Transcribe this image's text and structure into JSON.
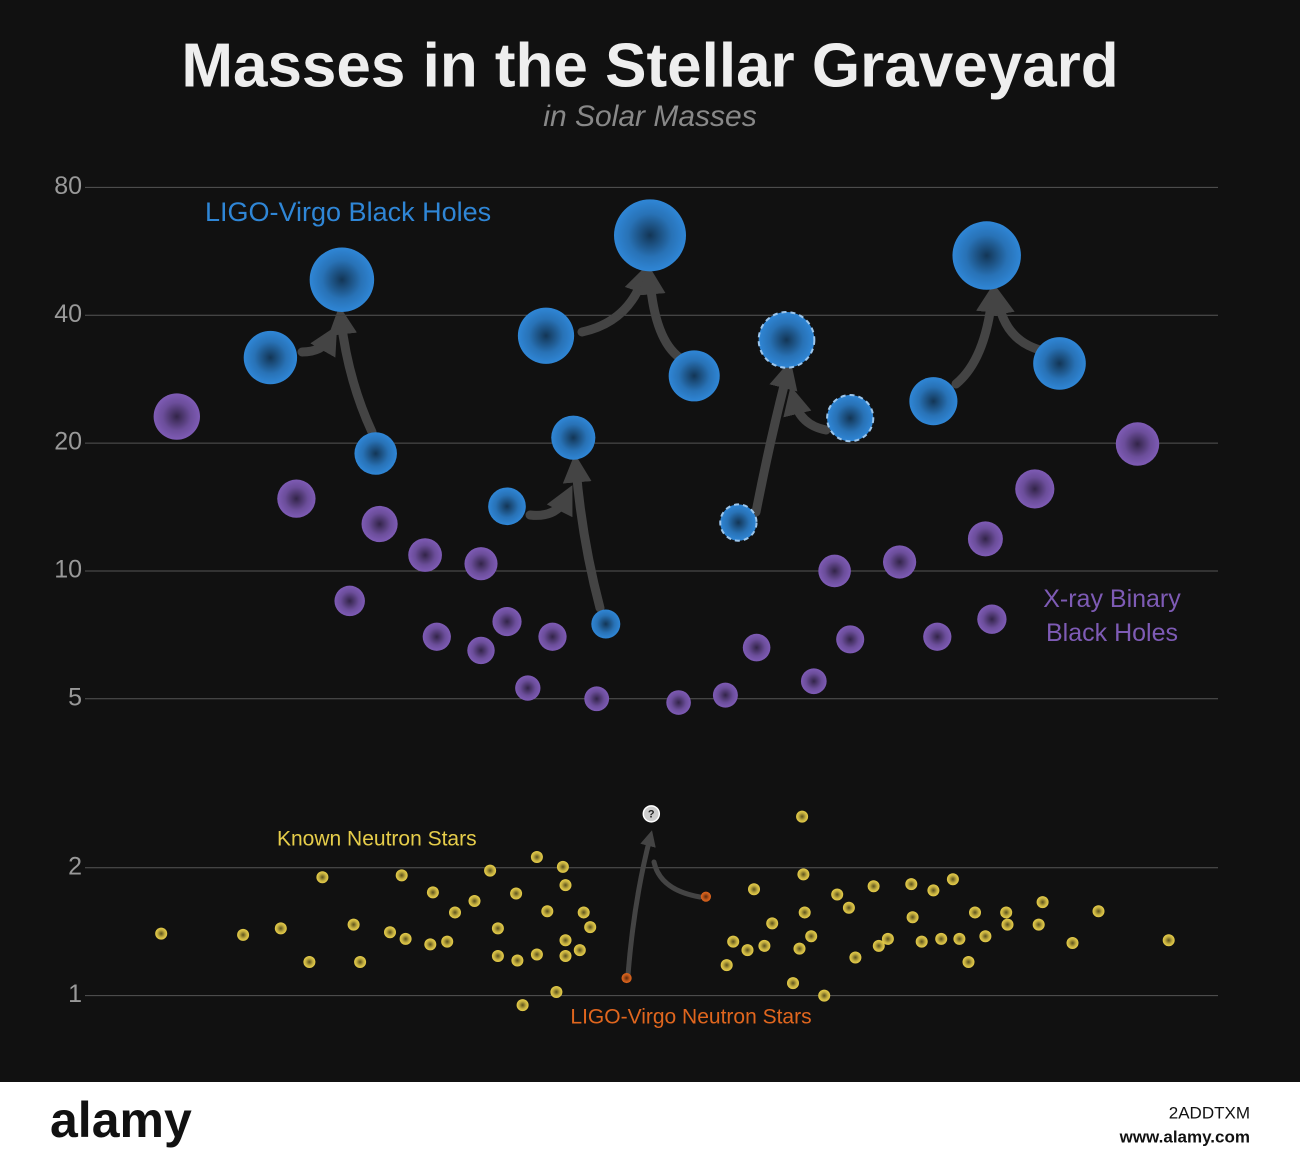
{
  "chart_data": {
    "type": "scatter",
    "title": "Masses in the Stellar Graveyard",
    "subtitle": "in Solar Masses",
    "log_y": true,
    "grid": true,
    "xlim": [
      0,
      100
    ],
    "ylim": [
      0.83,
      98
    ],
    "yticks": [
      1,
      2,
      5,
      10,
      20,
      40,
      80
    ],
    "series": [
      {
        "name": "LIGO-Virgo Black Holes",
        "color": "#2f86d6",
        "x": [
          20.8,
          26.3,
          28.9,
          39.0,
          44.1,
          46.6,
          42.0,
          50.0,
          53.4,
          56.8,
          60.5,
          65.4,
          71.8,
          75.9,
          81.5
        ],
        "values": [
          31.8,
          48.5,
          18.9,
          14.2,
          20.6,
          7.5,
          35.8,
          61.7,
          28.8,
          13.0,
          35,
          22.9,
          25.1,
          55.3,
          30.8
        ],
        "dashed": [
          false,
          false,
          false,
          false,
          false,
          false,
          false,
          false,
          false,
          true,
          true,
          true,
          false,
          false,
          false
        ]
      },
      {
        "name": "X-ray Binary Black Holes",
        "color": "#7e5bb5",
        "x": [
          13.6,
          22.8,
          26.9,
          29.2,
          32.7,
          33.6,
          37.0,
          37.0,
          39.0,
          40.6,
          42.5,
          45.9,
          52.2,
          55.8,
          58.2,
          62.6,
          64.2,
          65.4,
          69.2,
          72.1,
          75.8,
          76.3,
          79.6,
          87.5
        ],
        "values": [
          23.1,
          14.8,
          8.5,
          12.9,
          10.9,
          7.0,
          10.4,
          6.5,
          7.6,
          5.3,
          7.0,
          5.0,
          4.9,
          5.1,
          6.6,
          5.5,
          10.0,
          6.9,
          10.5,
          7.0,
          11.9,
          7.7,
          15.6,
          19.9
        ]
      },
      {
        "name": "Known Neutron Stars",
        "color": "#e6cd4a",
        "x": [
          12.4,
          18.7,
          21.6,
          23.8,
          24.8,
          27.2,
          27.7,
          30.0,
          30.9,
          31.2,
          33.1,
          33.3,
          34.4,
          35.0,
          36.5,
          37.7,
          38.3,
          38.3,
          39.7,
          39.8,
          40.2,
          41.3,
          41.3,
          42.1,
          42.8,
          43.3,
          43.5,
          43.5,
          43.5,
          44.6,
          44.9,
          45.4,
          55.9,
          56.4,
          57.5,
          58.0,
          58.8,
          59.4,
          61.0,
          61.5,
          61.7,
          61.8,
          61.9,
          62.4,
          63.4,
          64.4,
          65.3,
          65.8,
          67.2,
          67.6,
          68.3,
          70.1,
          70.2,
          70.9,
          71.8,
          72.4,
          73.3,
          73.8,
          74.5,
          75.0,
          75.8,
          77.4,
          77.5,
          79.9,
          80.2,
          82.5,
          84.5,
          89.9
        ],
        "values": [
          1.4,
          1.39,
          1.44,
          1.2,
          1.9,
          1.47,
          1.2,
          1.41,
          1.92,
          1.36,
          1.32,
          1.75,
          1.34,
          1.57,
          1.67,
          1.97,
          1.44,
          1.24,
          1.74,
          1.21,
          0.95,
          2.12,
          1.25,
          1.58,
          1.02,
          2.01,
          1.82,
          1.35,
          1.24,
          1.28,
          1.57,
          1.45,
          1.18,
          1.34,
          1.28,
          1.78,
          1.31,
          1.48,
          1.07,
          1.29,
          2.64,
          1.93,
          1.57,
          1.38,
          1.0,
          1.73,
          1.61,
          1.23,
          1.81,
          1.31,
          1.36,
          1.83,
          1.53,
          1.34,
          1.77,
          1.36,
          1.88,
          1.36,
          1.2,
          1.57,
          1.38,
          1.57,
          1.47,
          1.47,
          1.66,
          1.33,
          1.58,
          1.35
        ]
      },
      {
        "name": "LIGO-Virgo Neutron Stars",
        "color": "#e0661e",
        "x": [
          48.2,
          54.3
        ],
        "values": [
          1.1,
          1.71
        ]
      }
    ],
    "annotations": [
      {
        "text": "?",
        "x": 50.1,
        "y": 2.68
      }
    ]
  },
  "watermark": {
    "logo": "alamy",
    "image_id": "2ADDTXM",
    "url": "www.alamy.com"
  }
}
